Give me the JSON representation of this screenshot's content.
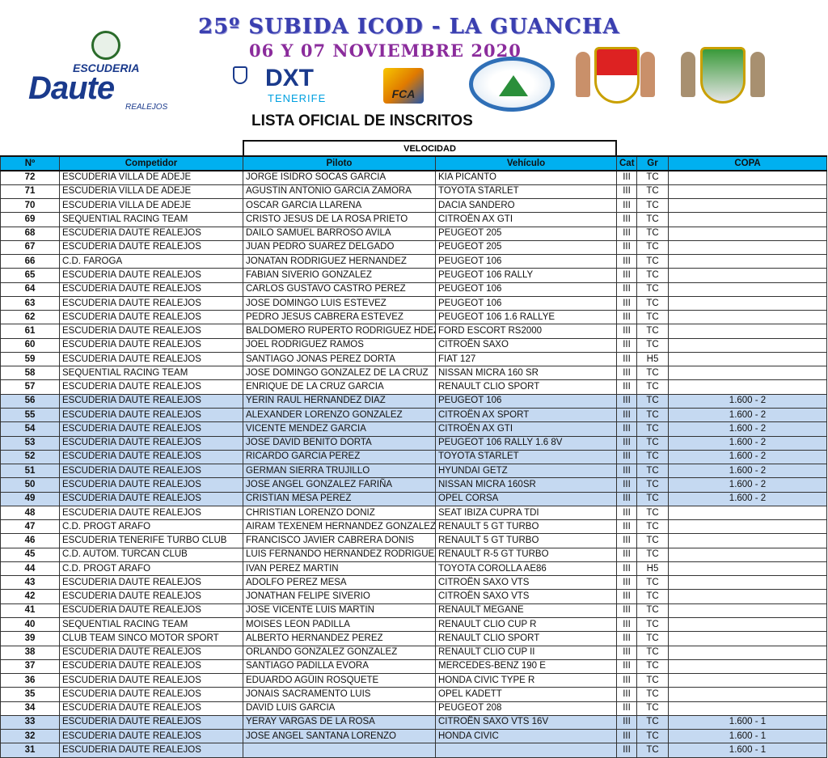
{
  "header": {
    "title": "25º SUBIDA ICOD - LA GUANCHA",
    "dates": "06 Y 07 NOVIEMBRE 2020",
    "list_title": "LISTA OFICIAL DE INSCRITOS",
    "logos": {
      "daute_top": "ESCUDERIA",
      "daute_main": "Daute",
      "daute_sub": "REALEJOS",
      "dxt": "DXT",
      "dxt_sub": "TENERIFE",
      "fca": "FCA"
    }
  },
  "table": {
    "group_header": "VELOCIDAD",
    "columns": [
      "Nº",
      "Competidor",
      "Piloto",
      "Vehículo",
      "Cat",
      "Gr",
      "COPA"
    ],
    "highlight_color": "#c5d9f1",
    "header_color": "#00b0f0",
    "rows": [
      {
        "no": "72",
        "comp": "ESCUDERIA VILLA DE ADEJE",
        "piloto": "JORGE ISIDRO SOCAS  GARCIA",
        "veh": "KIA PICANTO",
        "cat": "III",
        "gr": "TC",
        "copa": ""
      },
      {
        "no": "71",
        "comp": "ESCUDERIA VILLA DE ADEJE",
        "piloto": "AGUSTIN ANTONIO  GARCIA ZAMORA",
        "veh": "TOYOTA STARLET",
        "cat": "III",
        "gr": "TC",
        "copa": ""
      },
      {
        "no": "70",
        "comp": "ESCUDERIA VILLA DE ADEJE",
        "piloto": "OSCAR GARCIA LLARENA",
        "veh": "DACIA SANDERO",
        "cat": "III",
        "gr": "TC",
        "copa": ""
      },
      {
        "no": "69",
        "comp": "SEQUENTIAL RACING TEAM",
        "piloto": "CRISTO JESUS  DE LA ROSA PRIETO",
        "veh": "CITROËN AX GTI",
        "cat": "III",
        "gr": "TC",
        "copa": ""
      },
      {
        "no": "68",
        "comp": "ESCUDERIA DAUTE REALEJOS",
        "piloto": "DAILO SAMUEL  BARROSO  AVILA",
        "veh": "PEUGEOT 205",
        "cat": "III",
        "gr": "TC",
        "copa": ""
      },
      {
        "no": "67",
        "comp": "ESCUDERIA DAUTE REALEJOS",
        "piloto": "JUAN PEDRO SUAREZ DELGADO",
        "veh": "PEUGEOT 205",
        "cat": "III",
        "gr": "TC",
        "copa": ""
      },
      {
        "no": "66",
        "comp": "C.D. FAROGA",
        "piloto": "JONATAN RODRIGUEZ  HERNANDEZ",
        "veh": "PEUGEOT 106",
        "cat": "III",
        "gr": "TC",
        "copa": ""
      },
      {
        "no": "65",
        "comp": "ESCUDERIA DAUTE REALEJOS",
        "piloto": "FABIAN  SIVERIO  GONZALEZ",
        "veh": "PEUGEOT  106 RALLY",
        "cat": "III",
        "gr": "TC",
        "copa": ""
      },
      {
        "no": "64",
        "comp": "ESCUDERIA DAUTE REALEJOS",
        "piloto": "CARLOS GUSTAVO CASTRO PEREZ",
        "veh": "PEUGEOT 106",
        "cat": "III",
        "gr": "TC",
        "copa": ""
      },
      {
        "no": "63",
        "comp": "ESCUDERIA DAUTE REALEJOS",
        "piloto": "JOSE DOMINGO LUIS ESTEVEZ",
        "veh": "PEUGEOT 106",
        "cat": "III",
        "gr": "TC",
        "copa": ""
      },
      {
        "no": "62",
        "comp": "ESCUDERIA DAUTE REALEJOS",
        "piloto": "PEDRO JESUS  CABRERA  ESTEVEZ",
        "veh": "PEUGEOT 106 1.6 RALLYE",
        "cat": "III",
        "gr": "TC",
        "copa": ""
      },
      {
        "no": "61",
        "comp": "ESCUDERIA DAUTE REALEJOS",
        "piloto": "BALDOMERO RUPERTO RODRIGUEZ HDEZ",
        "veh": "FORD ESCORT RS2000",
        "cat": "III",
        "gr": "TC",
        "copa": ""
      },
      {
        "no": "60",
        "comp": "ESCUDERIA DAUTE REALEJOS",
        "piloto": "JOEL RODRIGUEZ  RAMOS",
        "veh": "CITROËN SAXO",
        "cat": "III",
        "gr": "TC",
        "copa": ""
      },
      {
        "no": "59",
        "comp": "ESCUDERIA DAUTE REALEJOS",
        "piloto": "SANTIAGO JONAS PEREZ DORTA",
        "veh": "FIAT 127",
        "cat": "III",
        "gr": "H5",
        "copa": ""
      },
      {
        "no": "58",
        "comp": "SEQUENTIAL RACING TEAM",
        "piloto": "JOSE DOMINGO GONZALEZ  DE LA CRUZ",
        "veh": "NISSAN MICRA 160 SR",
        "cat": "III",
        "gr": "TC",
        "copa": ""
      },
      {
        "no": "57",
        "comp": "ESCUDERIA DAUTE REALEJOS",
        "piloto": "ENRIQUE  DE LA CRUZ GARCIA",
        "veh": "RENAULT CLIO SPORT",
        "cat": "III",
        "gr": "TC",
        "copa": ""
      },
      {
        "no": "56",
        "comp": "ESCUDERIA DAUTE REALEJOS",
        "piloto": "YERIN RAUL HERNANDEZ DIAZ",
        "veh": "PEUGEOT 106",
        "cat": "III",
        "gr": "TC",
        "copa": "1.600 - 2",
        "hl": true
      },
      {
        "no": "55",
        "comp": "ESCUDERIA DAUTE REALEJOS",
        "piloto": "ALEXANDER  LORENZO  GONZALEZ",
        "veh": "CITROËN AX SPORT",
        "cat": "III",
        "gr": "TC",
        "copa": "1.600 - 2",
        "hl": true
      },
      {
        "no": "54",
        "comp": "ESCUDERIA DAUTE REALEJOS",
        "piloto": "VICENTE  MENDEZ GARCIA",
        "veh": "CITROËN AX GTI",
        "cat": "III",
        "gr": "TC",
        "copa": "1.600 - 2",
        "hl": true
      },
      {
        "no": "53",
        "comp": "ESCUDERIA DAUTE REALEJOS",
        "piloto": "JOSE DAVID BENITO  DORTA",
        "veh": "PEUGEOT 106 RALLY 1.6 8V",
        "cat": "III",
        "gr": "TC",
        "copa": "1.600 - 2",
        "hl": true
      },
      {
        "no": "52",
        "comp": "ESCUDERIA DAUTE REALEJOS",
        "piloto": "RICARDO GARCIA PEREZ",
        "veh": "TOYOTA STARLET",
        "cat": "III",
        "gr": "TC",
        "copa": "1.600 - 2",
        "hl": true
      },
      {
        "no": "51",
        "comp": "ESCUDERIA DAUTE REALEJOS",
        "piloto": "GERMAN SIERRA TRUJILLO",
        "veh": "HYUNDAI GETZ",
        "cat": "III",
        "gr": "TC",
        "copa": "1.600 - 2",
        "hl": true
      },
      {
        "no": "50",
        "comp": "ESCUDERIA DAUTE REALEJOS",
        "piloto": "JOSE ANGEL GONZALEZ  FARIÑA",
        "veh": "NISSAN  MICRA 160SR",
        "cat": "III",
        "gr": "TC",
        "copa": "1.600 - 2",
        "hl": true
      },
      {
        "no": "49",
        "comp": "ESCUDERIA DAUTE REALEJOS",
        "piloto": "CRISTIAN  MESA  PEREZ",
        "veh": "OPEL CORSA",
        "cat": "III",
        "gr": "TC",
        "copa": "1.600 - 2",
        "hl": true
      },
      {
        "no": "48",
        "comp": "ESCUDERIA DAUTE REALEJOS",
        "piloto": "CHRISTIAN LORENZO DONIZ",
        "veh": "SEAT IBIZA CUPRA TDI",
        "cat": "III",
        "gr": "TC",
        "copa": ""
      },
      {
        "no": "47",
        "comp": "C.D. PROGT ARAFO",
        "piloto": "AIRAM TEXENEM HERNANDEZ GONZALEZ",
        "veh": "RENAULT  5 GT TURBO",
        "cat": "III",
        "gr": "TC",
        "copa": ""
      },
      {
        "no": "46",
        "comp": "ESCUDERIA TENERIFE TURBO CLUB",
        "piloto": "FRANCISCO JAVIER CABRERA DONIS",
        "veh": "RENAULT  5 GT TURBO",
        "cat": "III",
        "gr": "TC",
        "copa": ""
      },
      {
        "no": "45",
        "comp": "C.D. AUTOM. TURCAN CLUB",
        "piloto": "LUIS FERNANDO HERNANDEZ RODRIGUEZ",
        "veh": "RENAULT R-5 GT TURBO",
        "cat": "III",
        "gr": "TC",
        "copa": ""
      },
      {
        "no": "44",
        "comp": "C.D. PROGT ARAFO",
        "piloto": "IVAN PEREZ MARTIN",
        "veh": "TOYOTA COROLLA AE86",
        "cat": "III",
        "gr": "H5",
        "copa": ""
      },
      {
        "no": "43",
        "comp": "ESCUDERIA DAUTE REALEJOS",
        "piloto": "ADOLFO PEREZ MESA",
        "veh": "CITROËN SAXO VTS",
        "cat": "III",
        "gr": "TC",
        "copa": ""
      },
      {
        "no": "42",
        "comp": "ESCUDERIA DAUTE REALEJOS",
        "piloto": "JONATHAN FELIPE SIVERIO",
        "veh": "CITROËN SAXO VTS",
        "cat": "III",
        "gr": "TC",
        "copa": ""
      },
      {
        "no": "41",
        "comp": "ESCUDERIA DAUTE REALEJOS",
        "piloto": "JOSE VICENTE LUIS MARTIN",
        "veh": "RENAULT MEGANE",
        "cat": "III",
        "gr": "TC",
        "copa": ""
      },
      {
        "no": "40",
        "comp": "SEQUENTIAL RACING TEAM",
        "piloto": "MOISES LEON PADILLA",
        "veh": "RENAULT CLIO CUP R",
        "cat": "III",
        "gr": "TC",
        "copa": ""
      },
      {
        "no": "39",
        "comp": "CLUB TEAM SINCO MOTOR SPORT",
        "piloto": "ALBERTO  HERNANDEZ PEREZ",
        "veh": "RENAULT CLIO SPORT",
        "cat": "III",
        "gr": "TC",
        "copa": ""
      },
      {
        "no": "38",
        "comp": "ESCUDERIA DAUTE REALEJOS",
        "piloto": "ORLANDO  GONZALEZ GONZALEZ",
        "veh": "RENAULT CLIO CUP II",
        "cat": "III",
        "gr": "TC",
        "copa": ""
      },
      {
        "no": "37",
        "comp": "ESCUDERIA DAUTE REALEJOS",
        "piloto": "SANTIAGO  PADILLA EVORA",
        "veh": "MERCEDES-BENZ 190 E",
        "cat": "III",
        "gr": "TC",
        "copa": ""
      },
      {
        "no": "36",
        "comp": "ESCUDERIA DAUTE REALEJOS",
        "piloto": "EDUARDO AGÜIN ROSQUETE",
        "veh": "HONDA CIVIC TYPE R",
        "cat": "III",
        "gr": "TC",
        "copa": ""
      },
      {
        "no": "35",
        "comp": "ESCUDERIA DAUTE REALEJOS",
        "piloto": "JONAIS SACRAMENTO LUIS",
        "veh": "OPEL KADETT",
        "cat": "III",
        "gr": "TC",
        "copa": ""
      },
      {
        "no": "34",
        "comp": "ESCUDERIA DAUTE REALEJOS",
        "piloto": "DAVID  LUIS  GARCIA",
        "veh": "PEUGEOT  208",
        "cat": "III",
        "gr": "TC",
        "copa": ""
      },
      {
        "no": "33",
        "comp": "ESCUDERIA DAUTE REALEJOS",
        "piloto": "YERAY  VARGAS  DE LA ROSA",
        "veh": "CITROËN SAXO VTS 16V",
        "cat": "III",
        "gr": "TC",
        "copa": "1.600 - 1",
        "hl": true
      },
      {
        "no": "32",
        "comp": "ESCUDERIA DAUTE REALEJOS",
        "piloto": "JOSE ANGEL  SANTANA LORENZO",
        "veh": "HONDA CIVIC",
        "cat": "III",
        "gr": "TC",
        "copa": "1.600 - 1",
        "hl": true
      },
      {
        "no": "31",
        "comp": "ESCUDERIA DAUTE REALEJOS",
        "piloto": "",
        "veh": "",
        "cat": "III",
        "gr": "TC",
        "copa": "1.600 - 1",
        "hl": true
      }
    ]
  }
}
